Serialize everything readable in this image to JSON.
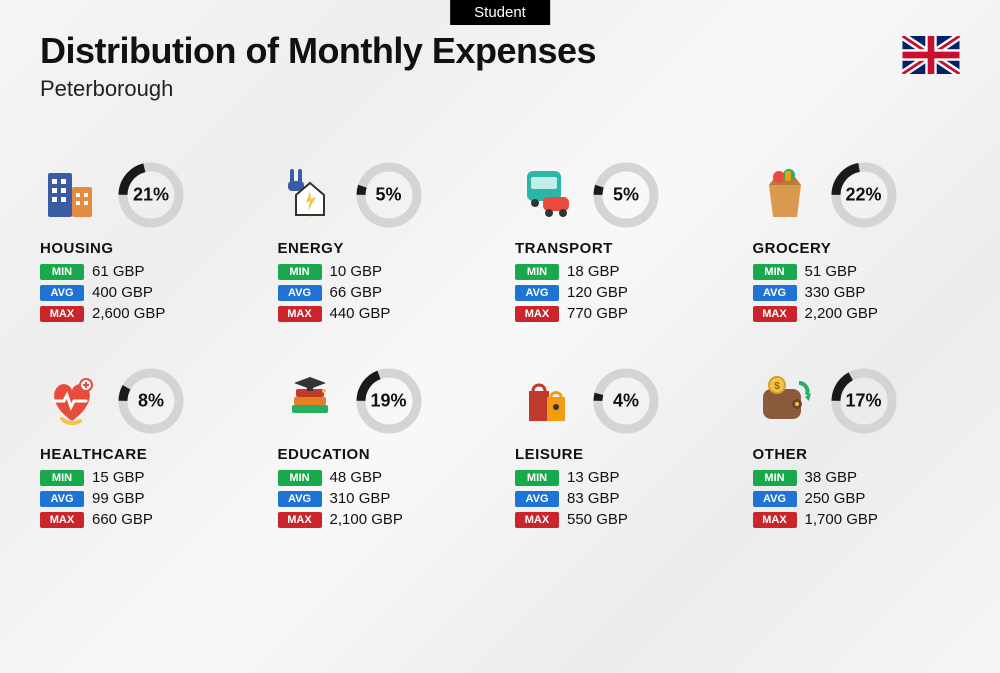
{
  "tag": "Student",
  "title": "Distribution of Monthly Expenses",
  "subtitle": "Peterborough",
  "currency": "GBP",
  "colors": {
    "min_badge": "#1aa84c",
    "avg_badge": "#1e73d4",
    "max_badge": "#c9252b",
    "donut_track": "#d4d4d4",
    "donut_fill": "#1a1a1a",
    "background": "#f2f2f2",
    "text": "#111111"
  },
  "labels": {
    "min": "MIN",
    "avg": "AVG",
    "max": "MAX"
  },
  "donut": {
    "radius": 28,
    "stroke_width": 9
  },
  "categories": [
    {
      "key": "housing",
      "name": "HOUSING",
      "percent": 21,
      "min": "61 GBP",
      "avg": "400 GBP",
      "max": "2,600 GBP",
      "icon": "buildings"
    },
    {
      "key": "energy",
      "name": "ENERGY",
      "percent": 5,
      "min": "10 GBP",
      "avg": "66 GBP",
      "max": "440 GBP",
      "icon": "energy"
    },
    {
      "key": "transport",
      "name": "TRANSPORT",
      "percent": 5,
      "min": "18 GBP",
      "avg": "120 GBP",
      "max": "770 GBP",
      "icon": "transport"
    },
    {
      "key": "grocery",
      "name": "GROCERY",
      "percent": 22,
      "min": "51 GBP",
      "avg": "330 GBP",
      "max": "2,200 GBP",
      "icon": "grocery"
    },
    {
      "key": "healthcare",
      "name": "HEALTHCARE",
      "percent": 8,
      "min": "15 GBP",
      "avg": "99 GBP",
      "max": "660 GBP",
      "icon": "healthcare"
    },
    {
      "key": "education",
      "name": "EDUCATION",
      "percent": 19,
      "min": "48 GBP",
      "avg": "310 GBP",
      "max": "2,100 GBP",
      "icon": "education"
    },
    {
      "key": "leisure",
      "name": "LEISURE",
      "percent": 4,
      "min": "13 GBP",
      "avg": "83 GBP",
      "max": "550 GBP",
      "icon": "leisure"
    },
    {
      "key": "other",
      "name": "OTHER",
      "percent": 17,
      "min": "38 GBP",
      "avg": "250 GBP",
      "max": "1,700 GBP",
      "icon": "other"
    }
  ]
}
